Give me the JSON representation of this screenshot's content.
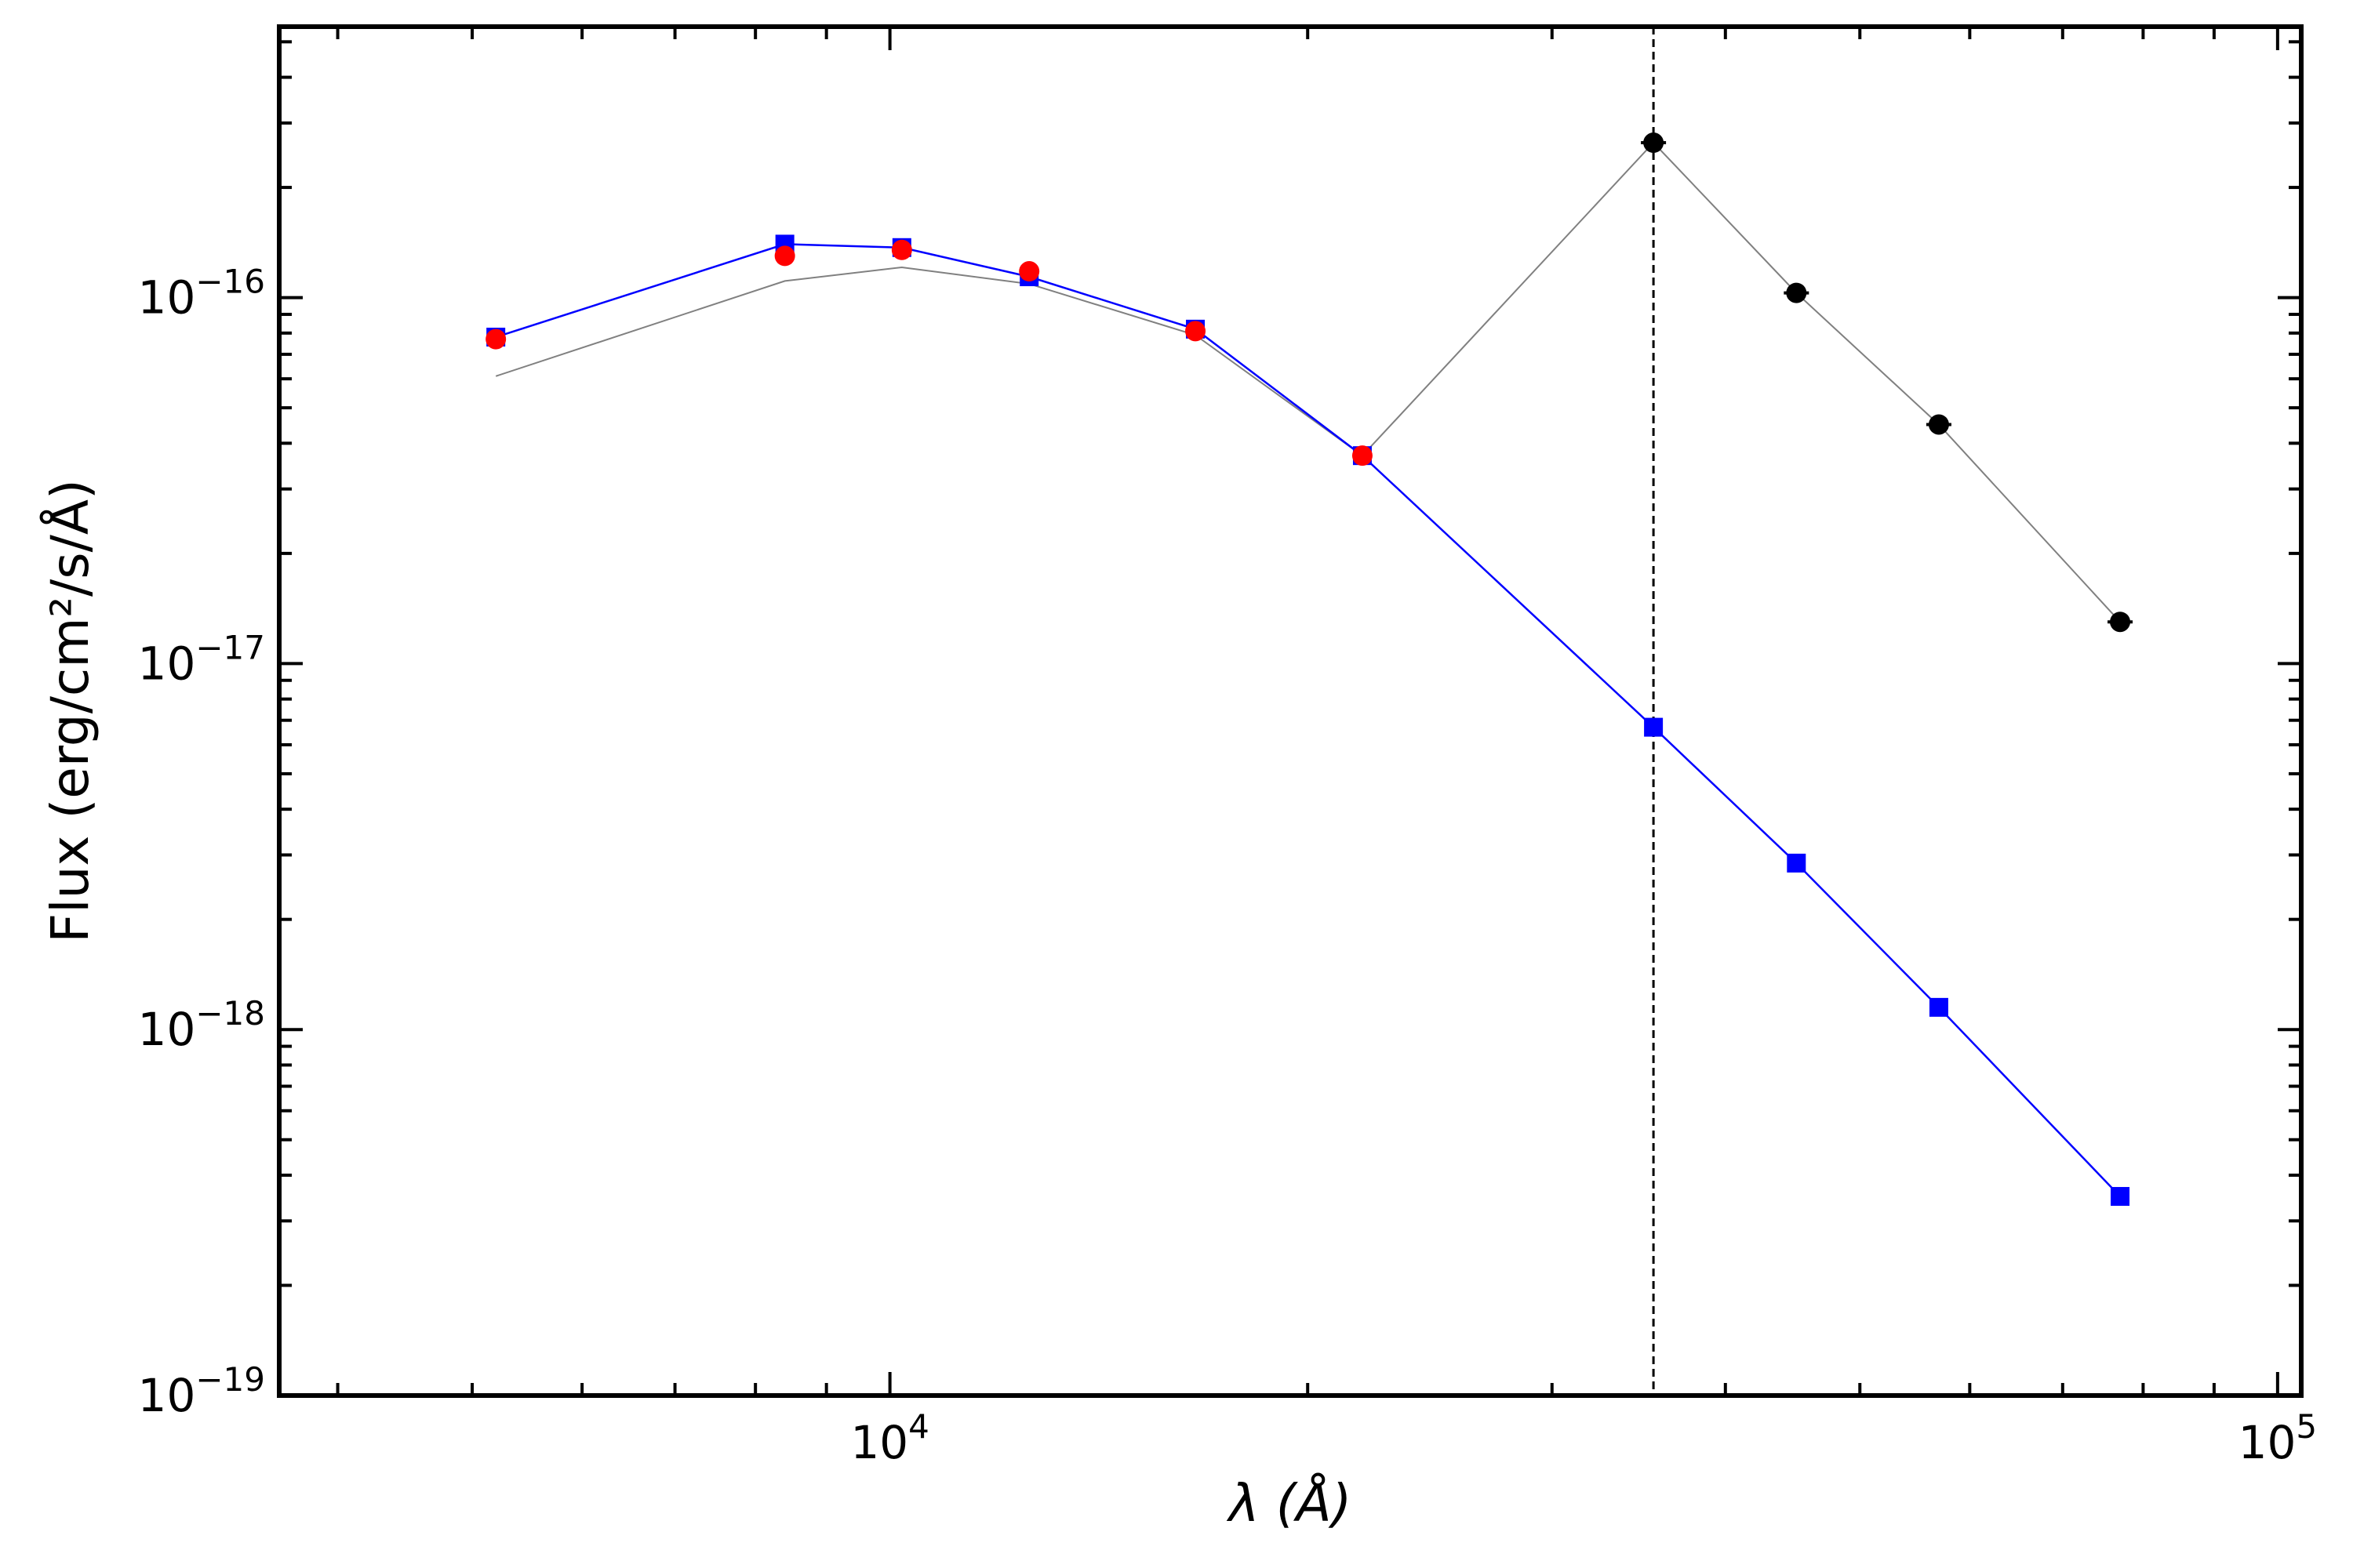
{
  "chart_data": {
    "type": "line",
    "x_scale": "log",
    "y_scale": "log",
    "xlabel": "λ (Å)",
    "ylabel": "Flux (erg/cm²/s/Å)",
    "xlim": [
      3630,
      104000
    ],
    "ylim": [
      1e-19,
      5.5e-16
    ],
    "grid": false,
    "legend": "none",
    "x_ticks": [
      {
        "value": 10000,
        "base": "10",
        "exp": "4"
      },
      {
        "value": 100000,
        "base": "10",
        "exp": "5"
      }
    ],
    "y_ticks": [
      {
        "value": 1e-19,
        "base": "10",
        "exp": "−19"
      },
      {
        "value": 1e-18,
        "base": "10",
        "exp": "−18"
      },
      {
        "value": 1e-17,
        "base": "10",
        "exp": "−17"
      },
      {
        "value": 1e-16,
        "base": "10",
        "exp": "−16"
      }
    ],
    "vline": {
      "x": 35500,
      "style": "dashed",
      "color": "#000000"
    },
    "series": [
      {
        "color": "#808080",
        "marker": "none",
        "points": [
          {
            "x": 5200,
            "y": 6.1e-17
          },
          {
            "x": 8400,
            "y": 1.11e-16
          },
          {
            "x": 10200,
            "y": 1.21e-16
          },
          {
            "x": 12600,
            "y": 1.09e-16
          },
          {
            "x": 16600,
            "y": 7.9e-17
          },
          {
            "x": 21900,
            "y": 3.7e-17
          },
          {
            "x": 35500,
            "y": 2.65e-16
          },
          {
            "x": 45000,
            "y": 1.03e-16
          },
          {
            "x": 57000,
            "y": 4.5e-17
          },
          {
            "x": 77000,
            "y": 1.3e-17
          }
        ]
      },
      {
        "color": "#0000ff",
        "marker": "square",
        "points": [
          {
            "x": 5200,
            "y": 7.8e-17
          },
          {
            "x": 8400,
            "y": 1.4e-16
          },
          {
            "x": 10200,
            "y": 1.37e-16
          },
          {
            "x": 12600,
            "y": 1.14e-16
          },
          {
            "x": 16600,
            "y": 8.2e-17
          },
          {
            "x": 21900,
            "y": 3.7e-17
          },
          {
            "x": 35500,
            "y": 6.7e-18
          },
          {
            "x": 45000,
            "y": 2.85e-18
          },
          {
            "x": 57000,
            "y": 1.15e-18
          },
          {
            "x": 77000,
            "y": 3.5e-19
          }
        ]
      },
      {
        "color": "#ff0000",
        "marker": "circle",
        "points": [
          {
            "x": 5200,
            "y": 7.7e-17
          },
          {
            "x": 8400,
            "y": 1.3e-16
          },
          {
            "x": 10200,
            "y": 1.35e-16
          },
          {
            "x": 12600,
            "y": 1.18e-16
          },
          {
            "x": 16600,
            "y": 8.1e-17
          },
          {
            "x": 21900,
            "y": 3.7e-17
          }
        ]
      },
      {
        "color": "#000000",
        "marker": "circle",
        "errorbars": true,
        "points": [
          {
            "x": 35500,
            "y": 2.65e-16
          },
          {
            "x": 45000,
            "y": 1.03e-16
          },
          {
            "x": 57000,
            "y": 4.5e-17
          },
          {
            "x": 77000,
            "y": 1.3e-17
          }
        ]
      }
    ]
  }
}
